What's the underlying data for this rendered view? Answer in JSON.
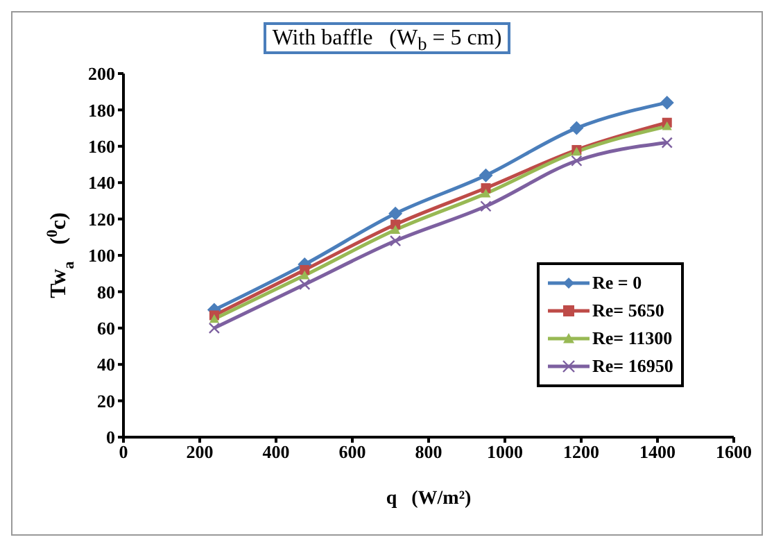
{
  "chart_data": {
    "type": "line",
    "title": "With baffle   (W$_{b}$ = 5 cm)",
    "xlabel": "q   (W/m²)",
    "ylabel": "Tw$_{a}$   ($^{0}$c)",
    "x": [
      238,
      475,
      713,
      950,
      1188,
      1425
    ],
    "xlim": [
      0,
      1600
    ],
    "xticks": [
      0,
      200,
      400,
      600,
      800,
      1000,
      1200,
      1400,
      1600
    ],
    "ylim": [
      0,
      200
    ],
    "yticks": [
      0,
      20,
      40,
      60,
      80,
      100,
      120,
      140,
      160,
      180,
      200
    ],
    "grid": false,
    "legend": "right",
    "series": [
      {
        "name": "Re = 0",
        "color": "#4a7ebb",
        "marker": "diamond",
        "values": [
          70,
          95,
          123,
          144,
          170,
          184
        ]
      },
      {
        "name": "Re= 5650",
        "color": "#be4b48",
        "marker": "square",
        "values": [
          67,
          92,
          117,
          137,
          158,
          173
        ]
      },
      {
        "name": "Re= 11300",
        "color": "#98b954",
        "marker": "triangle",
        "values": [
          65,
          89,
          114,
          134,
          157,
          171
        ]
      },
      {
        "name": "Re= 16950",
        "color": "#7d60a0",
        "marker": "cross",
        "values": [
          60,
          84,
          108,
          127,
          152,
          162
        ]
      }
    ]
  }
}
